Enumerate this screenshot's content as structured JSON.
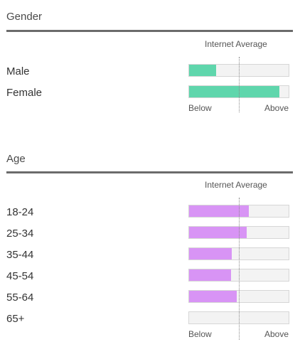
{
  "colors": {
    "gender_bar": "#5fd6ac",
    "age_bar": "#d894f5"
  },
  "gender": {
    "title": "Gender",
    "average_label": "Internet Average",
    "axis": {
      "below": "Below",
      "above": "Above"
    },
    "rows": [
      {
        "label": "Male",
        "fill_fraction": 0.27
      },
      {
        "label": "Female",
        "fill_fraction": 0.91
      }
    ]
  },
  "age": {
    "title": "Age",
    "average_label": "Internet Average",
    "axis": {
      "below": "Below",
      "above": "Above"
    },
    "rows": [
      {
        "label": "18-24",
        "fill_fraction": 0.6
      },
      {
        "label": "25-34",
        "fill_fraction": 0.58
      },
      {
        "label": "35-44",
        "fill_fraction": 0.43
      },
      {
        "label": "45-54",
        "fill_fraction": 0.42
      },
      {
        "label": "55-64",
        "fill_fraction": 0.48
      },
      {
        "label": "65+",
        "fill_fraction": 0.0
      }
    ]
  }
}
